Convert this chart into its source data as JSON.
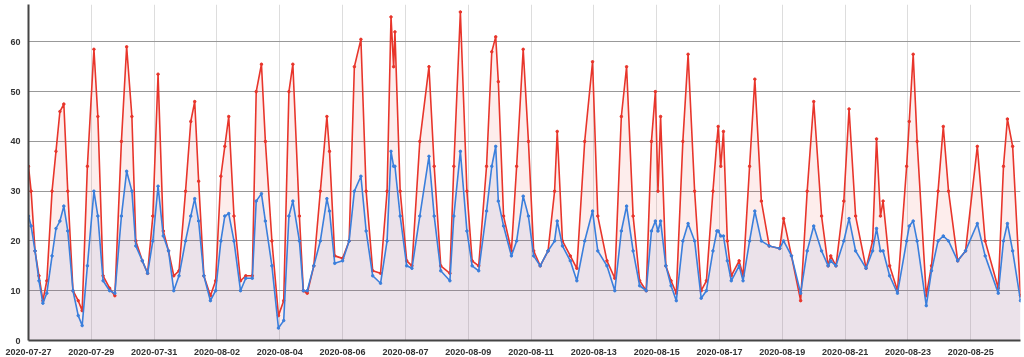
{
  "chart_data": {
    "type": "area",
    "x": [
      "2020-07-27T00:00",
      "2020-07-27T02:00",
      "2020-07-27T05:00",
      "2020-07-27T08:00",
      "2020-07-27T11:00",
      "2020-07-27T14:00",
      "2020-07-27T18:00",
      "2020-07-27T21:00",
      "2020-07-28T00:00",
      "2020-07-28T03:00",
      "2020-07-28T06:00",
      "2020-07-28T10:00",
      "2020-07-28T14:00",
      "2020-07-28T17:00",
      "2020-07-28T21:00",
      "2020-07-29T02:00",
      "2020-07-29T05:00",
      "2020-07-29T09:00",
      "2020-07-29T14:00",
      "2020-07-29T18:00",
      "2020-07-29T23:00",
      "2020-07-30T03:00",
      "2020-07-30T07:00",
      "2020-07-30T10:00",
      "2020-07-30T15:00",
      "2020-07-30T19:00",
      "2020-07-30T23:00",
      "2020-07-31T03:00",
      "2020-07-31T07:00",
      "2020-07-31T11:00",
      "2020-07-31T15:00",
      "2020-07-31T19:00",
      "2020-08-01T00:00",
      "2020-08-01T04:00",
      "2020-08-01T07:00",
      "2020-08-01T10:00",
      "2020-08-01T14:00",
      "2020-08-01T19:00",
      "2020-08-01T23:00",
      "2020-08-02T03:00",
      "2020-08-02T06:00",
      "2020-08-02T09:00",
      "2020-08-02T13:00",
      "2020-08-02T18:00",
      "2020-08-02T22:00",
      "2020-08-03T03:00",
      "2020-08-03T06:00",
      "2020-08-03T10:00",
      "2020-08-03T13:00",
      "2020-08-03T18:00",
      "2020-08-03T23:00",
      "2020-08-04T03:00",
      "2020-08-04T07:00",
      "2020-08-04T10:00",
      "2020-08-04T15:00",
      "2020-08-04T18:00",
      "2020-08-04T21:00",
      "2020-08-05T02:00",
      "2020-08-05T07:00",
      "2020-08-05T12:00",
      "2020-08-05T14:00",
      "2020-08-05T18:00",
      "2020-08-06T00:00",
      "2020-08-06T05:00",
      "2020-08-06T09:00",
      "2020-08-06T14:00",
      "2020-08-06T18:00",
      "2020-08-06T23:00",
      "2020-08-07T05:00",
      "2020-08-07T10:00",
      "2020-08-07T13:00",
      "2020-08-07T15:00",
      "2020-08-07T16:00",
      "2020-08-07T20:00",
      "2020-08-08T01:00",
      "2020-08-08T05:00",
      "2020-08-08T11:00",
      "2020-08-08T18:00",
      "2020-08-08T22:00",
      "2020-08-09T03:00",
      "2020-08-09T10:00",
      "2020-08-09T13:00",
      "2020-08-09T18:00",
      "2020-08-09T23:00",
      "2020-08-10T03:00",
      "2020-08-10T08:00",
      "2020-08-10T14:00",
      "2020-08-10T18:00",
      "2020-08-10T21:00",
      "2020-08-10T23:00",
      "2020-08-11T03:00",
      "2020-08-11T09:00",
      "2020-08-11T13:00",
      "2020-08-11T18:00",
      "2020-08-11T22:00",
      "2020-08-12T02:00",
      "2020-08-12T07:00",
      "2020-08-12T13:00",
      "2020-08-12T18:00",
      "2020-08-12T20:00",
      "2020-08-13T00:00",
      "2020-08-13T06:00",
      "2020-08-13T11:00",
      "2020-08-13T17:00",
      "2020-08-13T23:00",
      "2020-08-14T03:00",
      "2020-08-14T10:00",
      "2020-08-14T16:00",
      "2020-08-14T21:00",
      "2020-08-15T01:00",
      "2020-08-15T06:00",
      "2020-08-15T11:00",
      "2020-08-15T16:00",
      "2020-08-15T20:00",
      "2020-08-15T23:00",
      "2020-08-16T01:00",
      "2020-08-16T03:00",
      "2020-08-16T07:00",
      "2020-08-16T11:00",
      "2020-08-16T15:00",
      "2020-08-16T20:00",
      "2020-08-17T00:00",
      "2020-08-17T05:00",
      "2020-08-17T10:00",
      "2020-08-17T14:00",
      "2020-08-17T19:00",
      "2020-08-17T22:00",
      "2020-08-17T23:00",
      "2020-08-18T01:00",
      "2020-08-18T03:00",
      "2020-08-18T06:00",
      "2020-08-18T09:00",
      "2020-08-18T15:00",
      "2020-08-18T18:00",
      "2020-08-18T23:00",
      "2020-08-19T03:00",
      "2020-08-19T08:00",
      "2020-08-19T14:00",
      "2020-08-19T22:00",
      "2020-08-20T01:00",
      "2020-08-20T07:00",
      "2020-08-20T14:00",
      "2020-08-20T19:00",
      "2020-08-21T00:00",
      "2020-08-21T06:00",
      "2020-08-21T11:00",
      "2020-08-21T13:00",
      "2020-08-21T17:00",
      "2020-08-21T23:00",
      "2020-08-22T03:00",
      "2020-08-22T08:00",
      "2020-08-22T16:00",
      "2020-08-22T21:00",
      "2020-08-23T00:00",
      "2020-08-23T03:00",
      "2020-08-23T05:00",
      "2020-08-23T10:00",
      "2020-08-23T16:00",
      "2020-08-23T23:00",
      "2020-08-24T01:00",
      "2020-08-24T04:00",
      "2020-08-24T07:00",
      "2020-08-24T14:00",
      "2020-08-24T18:00",
      "2020-08-24T23:00",
      "2020-08-25T03:00",
      "2020-08-25T07:00",
      "2020-08-25T14:00",
      "2020-08-25T20:00",
      "2020-08-26T05:00",
      "2020-08-26T11:00",
      "2020-08-26T21:00",
      "2020-08-27T01:00",
      "2020-08-27T04:00",
      "2020-08-27T08:00",
      "2020-08-27T14:00"
    ],
    "series": [
      {
        "color": "#e8352b",
        "values": [
          35,
          30,
          18,
          13,
          8,
          12,
          30,
          38,
          46,
          47.5,
          30,
          10,
          8,
          6,
          35,
          58.5,
          45,
          13,
          10.5,
          9,
          40,
          59,
          45,
          20,
          16,
          13.5,
          25,
          53.5,
          22,
          18,
          13,
          14,
          30,
          44,
          48,
          32,
          13,
          9,
          12,
          33,
          39,
          45,
          25,
          12,
          13,
          13,
          50,
          55.5,
          40,
          20,
          5,
          8,
          50,
          55.5,
          25,
          10,
          9.5,
          15,
          30,
          45,
          38,
          17,
          16.5,
          20,
          55,
          60.5,
          30,
          14,
          13.5,
          30,
          65,
          55,
          62,
          30,
          16,
          15,
          40,
          55,
          35,
          15,
          13.5,
          35,
          66,
          30,
          16,
          15,
          35,
          58,
          61,
          52,
          25,
          18,
          35,
          58.5,
          40,
          18,
          15,
          18,
          30,
          42,
          20,
          17,
          14.5,
          40,
          56,
          25,
          16,
          12.5,
          45,
          55,
          25,
          12,
          10,
          40,
          50,
          30,
          45,
          15,
          12,
          9.5,
          40,
          57.5,
          30,
          10,
          12,
          30,
          40,
          43,
          35,
          42,
          20,
          13,
          16,
          13,
          35,
          52.5,
          28,
          19,
          18.5,
          24.5,
          17,
          8,
          30,
          48,
          25,
          15,
          17,
          15,
          28,
          46.5,
          25,
          14.5,
          20,
          40.5,
          25,
          28,
          15,
          10,
          35,
          44,
          57.5,
          40,
          9,
          15,
          30,
          43,
          30,
          16,
          18,
          39,
          20,
          10.5,
          35,
          44.5,
          39,
          9
        ]
      },
      {
        "color": "#3b7fdc",
        "values": [
          25,
          23,
          18,
          12,
          7.5,
          9.5,
          17,
          22.5,
          24,
          27,
          22,
          10,
          5,
          3,
          15,
          30,
          25,
          12,
          10,
          9.5,
          25,
          34,
          30,
          19,
          16,
          13.5,
          20,
          31,
          21,
          18,
          10,
          13,
          20,
          25,
          28.5,
          24,
          13,
          8,
          10,
          20,
          25,
          25.5,
          20,
          10,
          12.5,
          12.5,
          28,
          29.5,
          24,
          15,
          2.5,
          4,
          25,
          28,
          20,
          10,
          10,
          15,
          20,
          28.5,
          26,
          15.5,
          16,
          20,
          30,
          33,
          22,
          13,
          11.5,
          20,
          38,
          35,
          35,
          25,
          15,
          14.5,
          25,
          37,
          25,
          14,
          12,
          25,
          38,
          22,
          15,
          14,
          26,
          35,
          39,
          28,
          23,
          17,
          20,
          29,
          25,
          17,
          15,
          18,
          20,
          24,
          19,
          16,
          12,
          20,
          26,
          18,
          15,
          10,
          22,
          27,
          18,
          11,
          10,
          22,
          24,
          22,
          24,
          15,
          11,
          8,
          20,
          23.5,
          20,
          8.5,
          10,
          18,
          22,
          22,
          21,
          21,
          16,
          12,
          15,
          12,
          20,
          26,
          20,
          19,
          18.5,
          20,
          17,
          9.5,
          18,
          23,
          18,
          15,
          16,
          15,
          20,
          24.5,
          18,
          14.5,
          18,
          22.5,
          18,
          18,
          13,
          9.5,
          20,
          23,
          24,
          20,
          7,
          14,
          20,
          21,
          20,
          16,
          18,
          23.5,
          17,
          9.5,
          20,
          23.5,
          18,
          8
        ]
      }
    ],
    "xlim": [
      "2020-07-27T00:00",
      "2020-08-27T14:00"
    ],
    "xticks": [
      {
        "value": "2020-07-27",
        "label": "2020-07-27"
      },
      {
        "value": "2020-07-29",
        "label": "2020-07-29"
      },
      {
        "value": "2020-07-31",
        "label": "2020-07-31"
      },
      {
        "value": "2020-08-02",
        "label": "2020-08-02"
      },
      {
        "value": "2020-08-04",
        "label": "2020-08-04"
      },
      {
        "value": "2020-08-06",
        "label": "2020-08-06"
      },
      {
        "value": "2020-08-08",
        "label": "2020-08-07"
      },
      {
        "value": "2020-08-10",
        "label": "2020-08-09"
      },
      {
        "value": "2020-08-12",
        "label": "2020-08-11"
      },
      {
        "value": "2020-08-14",
        "label": "2020-08-13"
      },
      {
        "value": "2020-08-16",
        "label": "2020-08-15"
      },
      {
        "value": "2020-08-18",
        "label": "2020-08-17"
      },
      {
        "value": "2020-08-20",
        "label": "2020-08-19"
      },
      {
        "value": "2020-08-22",
        "label": "2020-08-21"
      },
      {
        "value": "2020-08-24",
        "label": "2020-08-23"
      },
      {
        "value": "2020-08-26",
        "label": "2020-08-25"
      }
    ],
    "ylim": [
      0,
      67.5
    ],
    "yticks": [
      0,
      10,
      20,
      30,
      40,
      50,
      60
    ],
    "grid": true,
    "marker": "circle",
    "line_style": "solid"
  }
}
